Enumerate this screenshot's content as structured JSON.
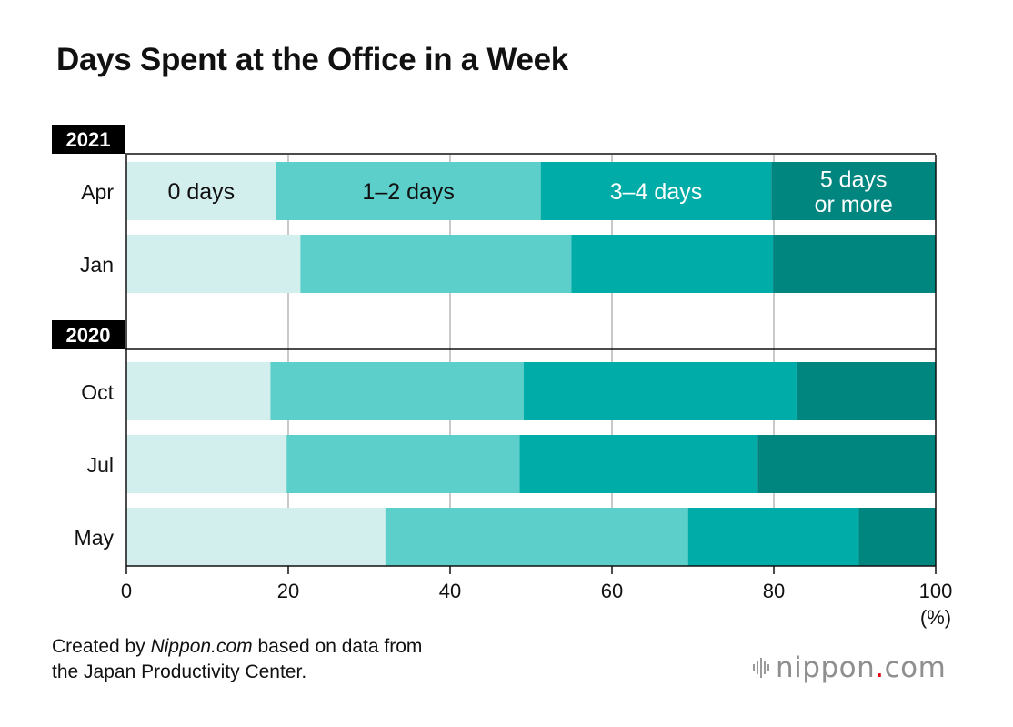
{
  "chart_data": {
    "type": "bar",
    "orientation": "horizontal",
    "stacked": true,
    "title": "Days Spent at the Office in a Week",
    "groups": [
      {
        "label": "2021",
        "rows": [
          "Apr",
          "Jan"
        ]
      },
      {
        "label": "2020",
        "rows": [
          "Oct",
          "Jul",
          "May"
        ]
      }
    ],
    "categories": [
      "Apr",
      "Jan",
      "Oct",
      "Jul",
      "May"
    ],
    "series": [
      {
        "name": "0 days",
        "color": "#d3efed",
        "label_color": "#111111",
        "values": [
          18.5,
          21.5,
          17.8,
          19.8,
          32.0
        ]
      },
      {
        "name": "1–2 days",
        "color": "#5ccfcb",
        "label_color": "#111111",
        "values": [
          32.7,
          33.5,
          31.3,
          28.8,
          37.4
        ]
      },
      {
        "name": "3–4 days",
        "color": "#00aca7",
        "label_color": "#ffffff",
        "values": [
          28.5,
          24.9,
          33.7,
          29.4,
          21.1
        ]
      },
      {
        "name": "5 days or more",
        "label_lines": [
          "5 days",
          "or more"
        ],
        "color": "#00857f",
        "label_color": "#ffffff",
        "values": [
          20.3,
          20.1,
          17.2,
          22.0,
          9.5
        ]
      }
    ],
    "xlim": [
      0,
      100
    ],
    "xticks": [
      0,
      20,
      40,
      60,
      80,
      100
    ],
    "xunit": "(%)",
    "grid": true,
    "legend": "inline labels on first bar"
  },
  "source": {
    "prefix": "Created by ",
    "site": "Nippon.com",
    "suffix": " based on data from",
    "line2": "the Japan Productivity Center."
  },
  "logo": {
    "part1": "nippon",
    "dot": ".",
    "part2": "com"
  }
}
